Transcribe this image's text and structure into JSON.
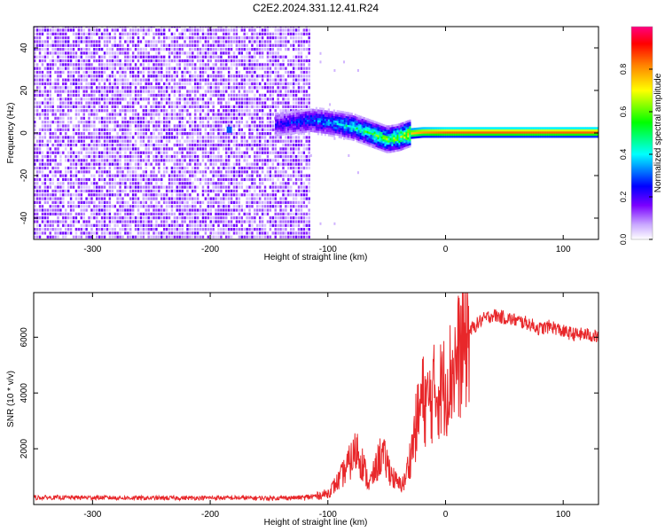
{
  "title": "C2E2.2024.331.12.41.R24",
  "colorbar": {
    "label": "Normalized spectral amplitude",
    "ticks": [
      "0.0",
      "0.2",
      "0.4",
      "0.6",
      "0.8"
    ],
    "tick_values": [
      0.0,
      0.2,
      0.4,
      0.6,
      0.8
    ],
    "range": [
      0,
      1
    ],
    "colors": [
      "#ffffff",
      "#7a00ff",
      "#0000ff",
      "#00ffff",
      "#00ff00",
      "#ffff00",
      "#ff8000",
      "#ff0000",
      "#ff0080"
    ]
  },
  "chart_data": [
    {
      "type": "heatmap",
      "xlabel": "Height of straight line (km)",
      "ylabel": "Frequency (Hz)",
      "xlim": [
        -350,
        130
      ],
      "ylim": [
        -50,
        50
      ],
      "x_ticks": [
        -300,
        -200,
        -100,
        0,
        100
      ],
      "x_tick_labels": [
        "-300",
        "-200",
        "-100",
        "0",
        "100"
      ],
      "y_ticks": [
        -40,
        -20,
        0,
        20,
        40
      ],
      "y_tick_labels": [
        "-40",
        "-20",
        "0",
        "20",
        "40"
      ],
      "noise_region_x": [
        -350,
        -115
      ],
      "signal_ridge": {
        "x": [
          -145,
          -130,
          -115,
          -100,
          -90,
          -80,
          -70,
          -60,
          -50,
          -40,
          -30,
          -20,
          0,
          50,
          100,
          130
        ],
        "y": [
          4,
          5,
          6,
          5,
          4,
          3,
          1,
          -1,
          -3,
          -2,
          0,
          0.5,
          0.5,
          0.5,
          0.5,
          0.5
        ],
        "amplitude": [
          0.25,
          0.3,
          0.35,
          0.4,
          0.45,
          0.5,
          0.55,
          0.6,
          0.65,
          0.7,
          0.8,
          0.85,
          0.9,
          0.9,
          0.9,
          0.9
        ]
      }
    },
    {
      "type": "line",
      "xlabel": "Height of straight line (km)",
      "ylabel": "SNR (10 * v/v)",
      "xlim": [
        -350,
        130
      ],
      "ylim": [
        0,
        7600
      ],
      "x_ticks": [
        -300,
        -200,
        -100,
        0,
        100
      ],
      "x_tick_labels": [
        "-300",
        "-200",
        "-100",
        "0",
        "100"
      ],
      "y_ticks": [
        2000,
        4000,
        6000
      ],
      "y_tick_labels": [
        "2000",
        "4000",
        "6000"
      ],
      "series": [
        {
          "color": "#e8272a",
          "x": [
            -350,
            -300,
            -250,
            -200,
            -150,
            -120,
            -110,
            -100,
            -90,
            -80,
            -75,
            -70,
            -65,
            -60,
            -55,
            -50,
            -45,
            -40,
            -35,
            -30,
            -25,
            -20,
            -15,
            -10,
            -5,
            0,
            10,
            20,
            30,
            40,
            50,
            60,
            70,
            80,
            90,
            100,
            110,
            120,
            130
          ],
          "y": [
            250,
            250,
            230,
            240,
            230,
            250,
            300,
            400,
            900,
            1600,
            2000,
            1400,
            700,
            1200,
            1800,
            1500,
            1000,
            700,
            800,
            1700,
            2800,
            3800,
            3600,
            4000,
            4100,
            4300,
            5200,
            6200,
            6600,
            6800,
            6700,
            6600,
            6500,
            6300,
            6400,
            6200,
            6100,
            6100,
            6000
          ]
        }
      ]
    }
  ]
}
